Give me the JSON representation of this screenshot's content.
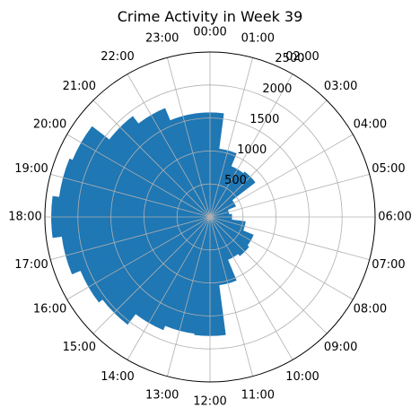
{
  "chart_data": {
    "type": "bar",
    "projection": "polar",
    "title": "Crime Activity in Week 39",
    "direction": "clockwise",
    "zero_location": "top",
    "categories": [
      "00:00",
      "01:00",
      "02:00",
      "03:00",
      "04:00",
      "05:00",
      "06:00",
      "07:00",
      "08:00",
      "09:00",
      "10:00",
      "11:00",
      "12:00",
      "13:00",
      "14:00",
      "15:00",
      "16:00",
      "17:00",
      "18:00",
      "19:00",
      "20:00",
      "21:00",
      "22:00",
      "23:00"
    ],
    "values": [
      1580,
      1040,
      830,
      860,
      420,
      290,
      330,
      540,
      710,
      740,
      700,
      1040,
      1800,
      1780,
      1850,
      2050,
      2120,
      2260,
      2400,
      2300,
      2250,
      1920,
      1780,
      1580
    ],
    "r_ticks": [
      "500",
      "1000",
      "1500",
      "2000",
      "2500"
    ],
    "r_tick_values": [
      500,
      1000,
      1500,
      2000,
      2500
    ],
    "rlim": [
      0,
      2500
    ],
    "grid": true,
    "colors": {
      "bar": "#1f77b4",
      "grid": "#b0b0b0",
      "spine": "#000000"
    }
  }
}
